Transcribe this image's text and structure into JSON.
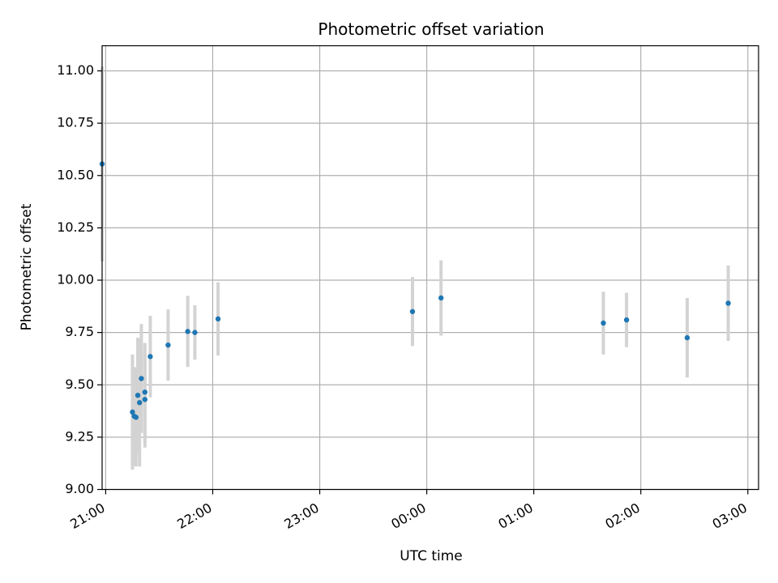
{
  "chart_data": {
    "type": "scatter",
    "title": "Photometric offset variation",
    "xlabel": "UTC time",
    "ylabel": "Photometric offset",
    "grid": true,
    "x_domain": [
      "20:58",
      "03:06"
    ],
    "ylim": [
      9.0,
      11.12
    ],
    "x_ticks": [
      "21:00",
      "22:00",
      "23:00",
      "00:00",
      "01:00",
      "02:00",
      "03:00"
    ],
    "y_ticks": [
      "9.00",
      "9.25",
      "9.50",
      "9.75",
      "10.00",
      "10.25",
      "10.50",
      "10.75",
      "11.00"
    ],
    "colors": {
      "point": "#1f77b4",
      "errorbar": "#d3d3d3",
      "grid": "#b0b0b0"
    },
    "points": [
      {
        "x": "20:58",
        "y": 10.555,
        "yerr": 0.465
      },
      {
        "x": "21:15",
        "y": 9.37,
        "yerr": 0.275
      },
      {
        "x": "21:16",
        "y": 9.35,
        "yerr": 0.235
      },
      {
        "x": "21:17",
        "y": 9.345,
        "yerr": 0.235
      },
      {
        "x": "21:18",
        "y": 9.45,
        "yerr": 0.275
      },
      {
        "x": "21:19",
        "y": 9.415,
        "yerr": 0.305
      },
      {
        "x": "21:20",
        "y": 9.53,
        "yerr": 0.26
      },
      {
        "x": "21:22",
        "y": 9.43,
        "yerr": 0.23
      },
      {
        "x": "21:22",
        "y": 9.465,
        "yerr": 0.235
      },
      {
        "x": "21:25",
        "y": 9.635,
        "yerr": 0.195
      },
      {
        "x": "21:35",
        "y": 9.69,
        "yerr": 0.17
      },
      {
        "x": "21:46",
        "y": 9.755,
        "yerr": 0.17
      },
      {
        "x": "21:50",
        "y": 9.75,
        "yerr": 0.13
      },
      {
        "x": "22:03",
        "y": 9.815,
        "yerr": 0.175
      },
      {
        "x": "23:52",
        "y": 9.85,
        "yerr": 0.165
      },
      {
        "x": "00:08",
        "y": 9.915,
        "yerr": 0.18
      },
      {
        "x": "01:39",
        "y": 9.795,
        "yerr": 0.15
      },
      {
        "x": "01:52",
        "y": 9.81,
        "yerr": 0.13
      },
      {
        "x": "02:26",
        "y": 9.725,
        "yerr": 0.19
      },
      {
        "x": "02:49",
        "y": 9.89,
        "yerr": 0.18
      }
    ]
  }
}
